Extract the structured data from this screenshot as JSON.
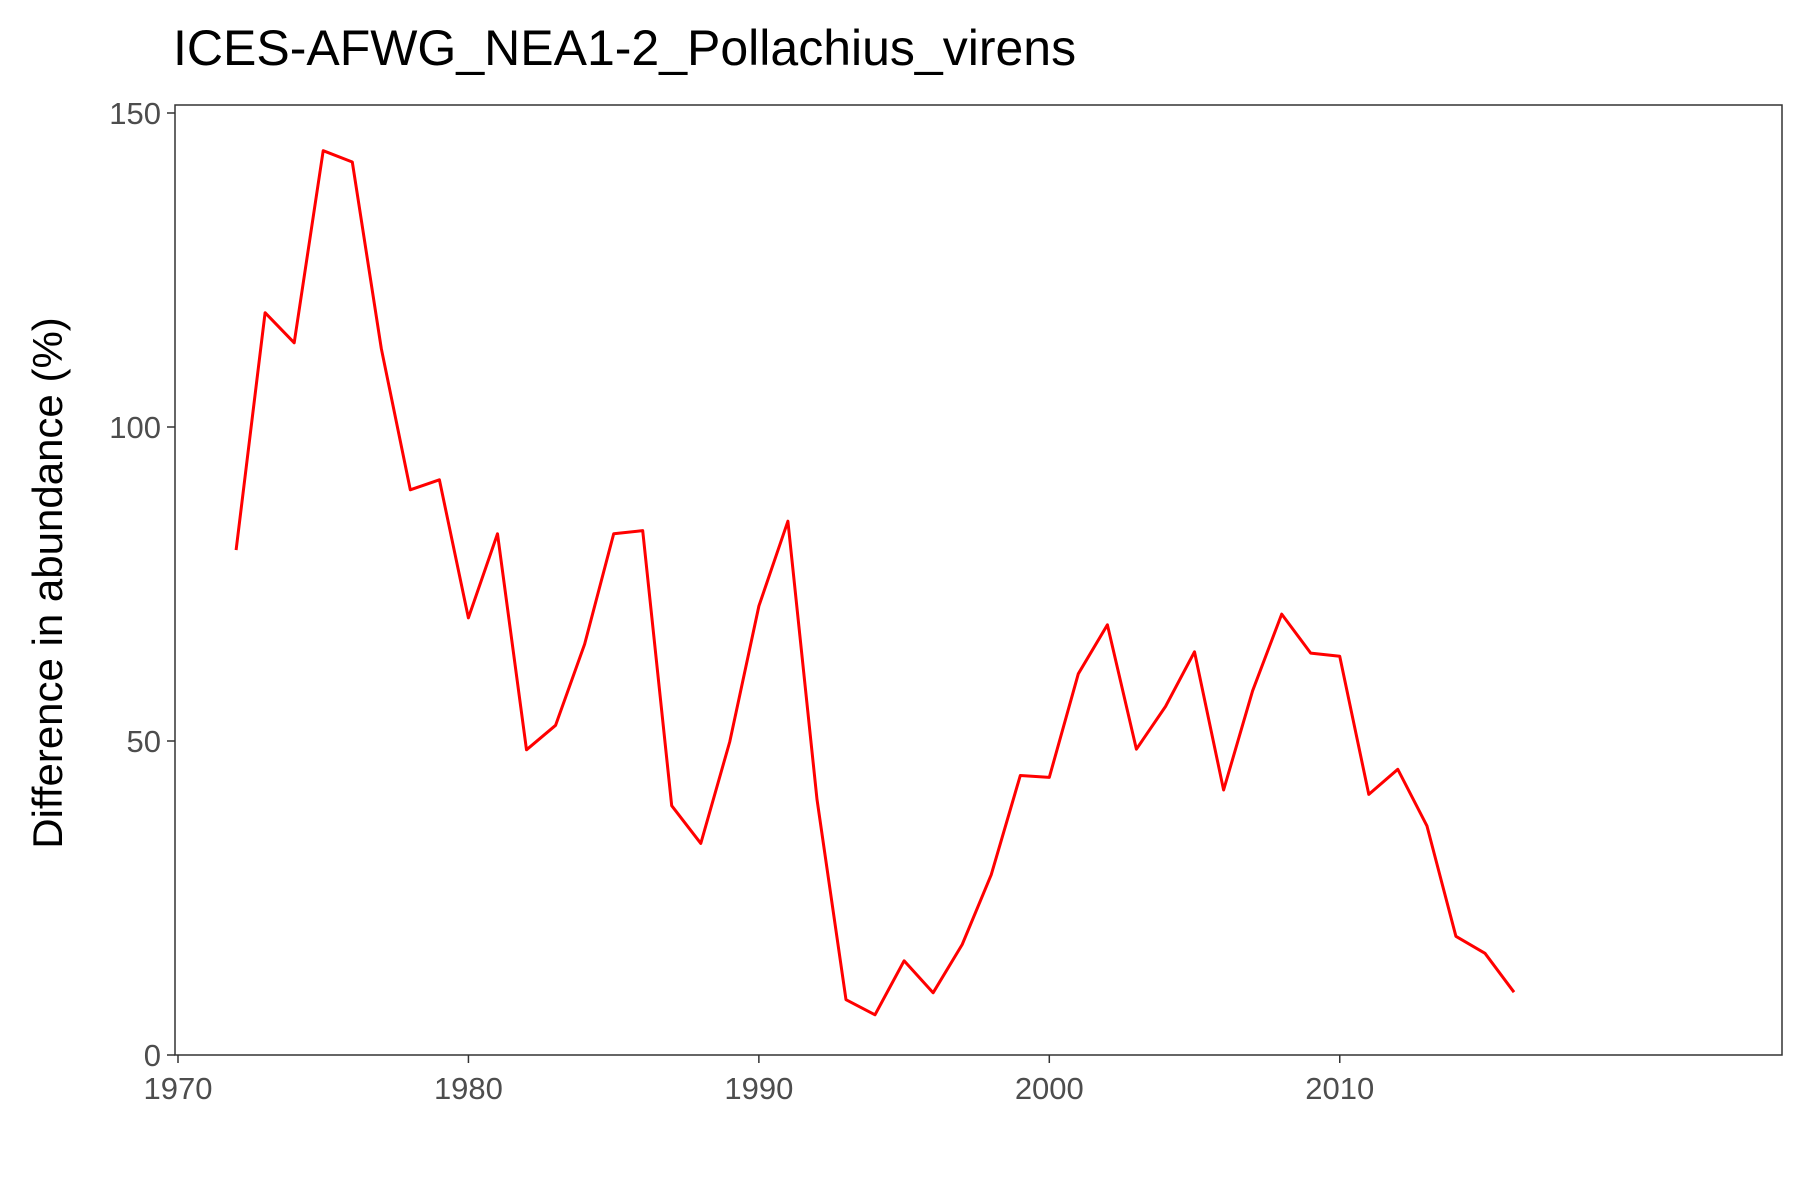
{
  "chart_data": {
    "type": "line",
    "title": "ICES-AFWG_NEA1-2_Pollachius_virens",
    "xlabel": "",
    "ylabel": "Difference in abundance (%)",
    "xlim": [
      1970,
      2018
    ],
    "ylim": [
      0,
      150
    ],
    "x_ticks": [
      1970,
      1980,
      1990,
      2000,
      2010
    ],
    "y_ticks": [
      0,
      50,
      100,
      150
    ],
    "grid": false,
    "series": [
      {
        "color": "#ff0000",
        "x": [
          1972,
          1973,
          1974,
          1975,
          1976,
          1977,
          1978,
          1979,
          1980,
          1981,
          1982,
          1983,
          1984,
          1985,
          1986,
          1987,
          1988,
          1989,
          1990,
          1991,
          1992,
          1993,
          1994,
          1995,
          1996,
          1997,
          1998,
          1999,
          2000,
          2001,
          2002,
          2003,
          2004,
          2005,
          2006,
          2007,
          2008,
          2009,
          2010,
          2011,
          2012,
          2013,
          2014,
          2015,
          2016
        ],
        "y": [
          80.4,
          118.2,
          113.4,
          144.0,
          142.2,
          112.5,
          90.0,
          91.6,
          69.6,
          83.0,
          48.6,
          52.5,
          65.4,
          83.0,
          83.5,
          39.7,
          33.7,
          49.9,
          71.5,
          85.0,
          40.7,
          8.8,
          6.4,
          15.0,
          9.9,
          17.6,
          28.7,
          44.5,
          44.2,
          60.7,
          68.5,
          48.7,
          55.5,
          64.2,
          42.2,
          58.0,
          70.2,
          64.0,
          63.5,
          41.5,
          45.5,
          36.5,
          18.9,
          16.2,
          10.0
        ]
      }
    ]
  }
}
